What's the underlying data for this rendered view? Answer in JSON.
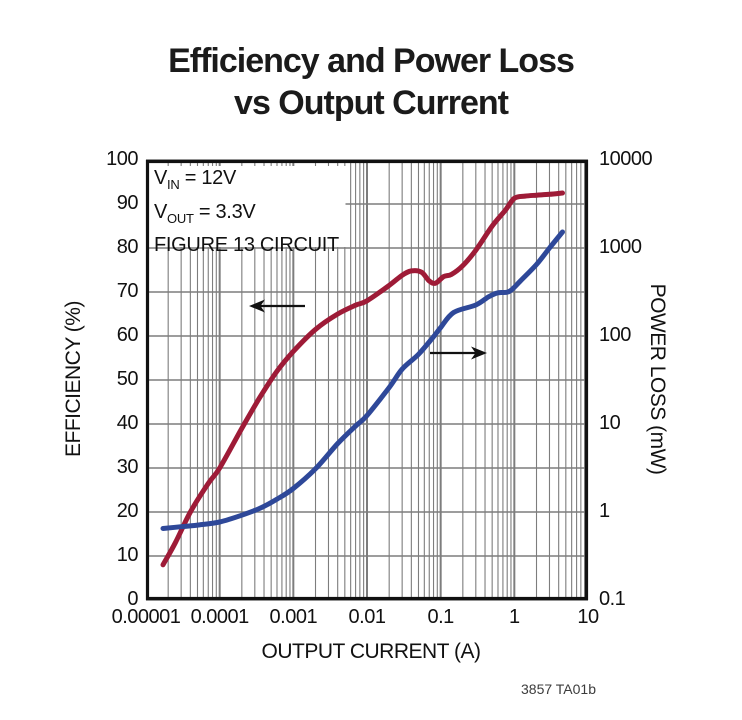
{
  "title": {
    "line1": "Efficiency and Power Loss",
    "line2": "vs Output Current"
  },
  "watermark": "3857 TA01b",
  "annotation": {
    "line1": {
      "base": "V",
      "sub": "IN",
      "rest": " = 12V"
    },
    "line2": {
      "base": "V",
      "sub": "OUT",
      "rest": " = 3.3V"
    },
    "line3": "FIGURE 13 CIRCUIT"
  },
  "chart_data": {
    "type": "line",
    "title": "Efficiency and Power Loss vs Output Current",
    "xlabel": "OUTPUT CURRENT (A)",
    "x_axis": {
      "scale": "log",
      "min": 1e-05,
      "max": 10,
      "tick_values": [
        1e-05,
        0.0001,
        0.001,
        0.01,
        0.1,
        1,
        10
      ],
      "tick_labels": [
        "0.00001",
        "0.0001",
        "0.001",
        "0.01",
        "0.1",
        "1",
        "10"
      ],
      "minor_gridlines": true
    },
    "y_left_axis": {
      "label": "EFFICIENCY (%)",
      "scale": "linear",
      "min": 0,
      "max": 100,
      "tick_values": [
        100,
        90,
        80,
        70,
        60,
        50,
        40,
        30,
        20,
        10,
        0
      ],
      "tick_labels": [
        "100",
        "90",
        "80",
        "70",
        "60",
        "50",
        "40",
        "30",
        "20",
        "10",
        "0"
      ]
    },
    "y_right_axis": {
      "label": "POWER LOSS (mW)",
      "scale": "log",
      "min": 0.1,
      "max": 10000,
      "tick_values": [
        10000,
        1000,
        100,
        10,
        1,
        0.1
      ],
      "tick_labels": [
        "10000",
        "1000",
        "100",
        "10",
        "1",
        "0.1"
      ]
    },
    "grid_color": "#7d7d7d",
    "series": [
      {
        "name": "Efficiency",
        "axis": "left",
        "color": "#9e1b37",
        "points": [
          [
            1.7e-05,
            8
          ],
          [
            2.5e-05,
            13
          ],
          [
            4e-05,
            20
          ],
          [
            7e-05,
            26.5
          ],
          [
            0.0001,
            30
          ],
          [
            0.0002,
            39
          ],
          [
            0.00035,
            46
          ],
          [
            0.0006,
            52
          ],
          [
            0.001,
            56.5
          ],
          [
            0.002,
            61.5
          ],
          [
            0.004,
            65
          ],
          [
            0.007,
            67
          ],
          [
            0.01,
            68
          ],
          [
            0.02,
            71.5
          ],
          [
            0.03,
            73.8
          ],
          [
            0.04,
            74.8
          ],
          [
            0.055,
            74.5
          ],
          [
            0.07,
            72.5
          ],
          [
            0.085,
            72
          ],
          [
            0.11,
            73.5
          ],
          [
            0.14,
            74
          ],
          [
            0.2,
            76
          ],
          [
            0.3,
            79.5
          ],
          [
            0.5,
            85
          ],
          [
            0.75,
            88.5
          ],
          [
            1,
            91.3
          ],
          [
            1.4,
            91.8
          ],
          [
            2,
            92
          ],
          [
            3,
            92.2
          ],
          [
            4.5,
            92.5
          ]
        ]
      },
      {
        "name": "Power Loss",
        "axis": "right",
        "color": "#2e4899",
        "points": [
          [
            1.7e-05,
            0.65
          ],
          [
            3e-05,
            0.68
          ],
          [
            5e-05,
            0.71
          ],
          [
            0.0001,
            0.77
          ],
          [
            0.0002,
            0.92
          ],
          [
            0.00035,
            1.1
          ],
          [
            0.0006,
            1.4
          ],
          [
            0.001,
            1.85
          ],
          [
            0.002,
            3.1
          ],
          [
            0.004,
            6
          ],
          [
            0.007,
            9.5
          ],
          [
            0.01,
            12.5
          ],
          [
            0.02,
            26
          ],
          [
            0.03,
            42
          ],
          [
            0.05,
            62
          ],
          [
            0.08,
            98
          ],
          [
            0.1,
            125
          ],
          [
            0.15,
            185
          ],
          [
            0.3,
            225
          ],
          [
            0.45,
            280
          ],
          [
            0.6,
            310
          ],
          [
            0.85,
            320
          ],
          [
            1.2,
            420
          ],
          [
            2,
            650
          ],
          [
            3,
            1000
          ],
          [
            4.5,
            1520
          ]
        ]
      }
    ],
    "arrows": [
      {
        "series": "Efficiency",
        "points_to": "left-axis",
        "direction": "left"
      },
      {
        "series": "Power Loss",
        "points_to": "right-axis",
        "direction": "right"
      }
    ]
  }
}
